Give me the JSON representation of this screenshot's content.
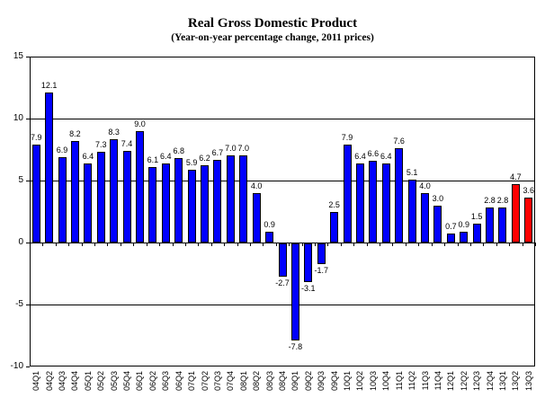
{
  "chart": {
    "title": "Real Gross Domestic Product",
    "subtitle": "(Year-on-year percentage change, 2011 prices)"
  },
  "chart_data": {
    "type": "bar",
    "title": "Real Gross Domestic Product",
    "subtitle": "(Year-on-year percentage change, 2011 prices)",
    "categories": [
      "04Q1",
      "04Q2",
      "04Q3",
      "04Q4",
      "05Q1",
      "05Q2",
      "05Q3",
      "05Q4",
      "06Q1",
      "06Q2",
      "06Q3",
      "06Q4",
      "07Q1",
      "07Q2",
      "07Q3",
      "07Q4",
      "08Q1",
      "08Q2",
      "08Q3",
      "08Q4",
      "09Q1",
      "09Q2",
      "09Q3",
      "09Q4",
      "10Q1",
      "10Q2",
      "10Q3",
      "10Q4",
      "11Q1",
      "11Q2",
      "11Q3",
      "11Q4",
      "12Q1",
      "12Q2",
      "12Q3",
      "12Q4",
      "13Q1",
      "13Q2",
      "13Q3"
    ],
    "values": [
      7.9,
      12.1,
      6.9,
      8.2,
      6.4,
      7.3,
      8.3,
      7.4,
      9.0,
      6.1,
      6.4,
      6.8,
      5.9,
      6.2,
      6.7,
      7.0,
      7.0,
      4.0,
      0.9,
      -2.7,
      -7.8,
      -3.1,
      -1.7,
      2.5,
      7.9,
      6.4,
      6.6,
      6.4,
      7.6,
      5.1,
      4.0,
      3.0,
      0.7,
      0.9,
      1.5,
      2.8,
      2.8,
      4.7,
      3.6
    ],
    "highlight_categories": [
      "13Q2",
      "13Q3"
    ],
    "colors": {
      "bar_default": "#0000FF",
      "bar_highlight": "#FF0000",
      "bar_border": "#000000",
      "axis": "#000000",
      "text": "#000000",
      "background": "#FFFFFF"
    },
    "ylim": [
      -10,
      15
    ],
    "yticks": [
      15,
      10,
      5,
      0,
      -5,
      -10
    ],
    "gridlines": [
      10,
      5,
      0,
      -5
    ],
    "grid": true,
    "legend_position": "none",
    "value_labels": true,
    "value_label_format": "one-decimal",
    "xlabel": "",
    "ylabel": ""
  }
}
